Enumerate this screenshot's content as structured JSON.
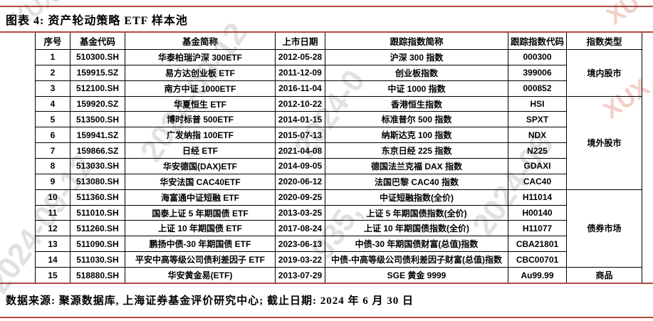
{
  "figure": {
    "title": "图表 4: 资产轮动策略 ETF 样本池",
    "source_note": "数据来源: 聚源数据库, 上海证券基金评价研究中心; 截止日期: 2024 年 6 月 30 日"
  },
  "colors": {
    "rule_red": "#AE4A42",
    "table_border": "#000000",
    "watermark_gray": "#e1e1e1",
    "watermark_pink": "#f3cfc9"
  },
  "table": {
    "headers": {
      "no": "序号",
      "fund_code": "基金代码",
      "fund_name": "基金简称",
      "list_date": "上市日期",
      "index_name": "跟踪指数简称",
      "index_code": "跟踪指数代码",
      "index_type": "指数类型"
    },
    "rows": [
      {
        "no": "1",
        "fund_code": "510300.SH",
        "fund_name": "华泰柏瑞沪深 300ETF",
        "list_date": "2012-05-28",
        "index_name": "沪深 300 指数",
        "index_code": "000300"
      },
      {
        "no": "2",
        "fund_code": "159915.SZ",
        "fund_name": "易方达创业板 ETF",
        "list_date": "2011-12-09",
        "index_name": "创业板指数",
        "index_code": "399006"
      },
      {
        "no": "3",
        "fund_code": "512100.SH",
        "fund_name": "南方中证 1000ETF",
        "list_date": "2016-11-04",
        "index_name": "中证 1000 指数",
        "index_code": "000852"
      },
      {
        "no": "4",
        "fund_code": "159920.SZ",
        "fund_name": "华夏恒生 ETF",
        "list_date": "2012-10-22",
        "index_name": "香港恒生指数",
        "index_code": "HSI"
      },
      {
        "no": "5",
        "fund_code": "513500.SH",
        "fund_name": "博时标普 500ETF",
        "list_date": "2014-01-15",
        "index_name": "标准普尔 500 指数",
        "index_code": "SPXT"
      },
      {
        "no": "6",
        "fund_code": "159941.SZ",
        "fund_name": "广发纳指 100ETF",
        "list_date": "2015-07-13",
        "index_name": "纳斯达克 100 指数",
        "index_code": "NDX"
      },
      {
        "no": "7",
        "fund_code": "159866.SZ",
        "fund_name": "日经 ETF",
        "list_date": "2021-04-08",
        "index_name": "东京日经 225 指数",
        "index_code": "N225"
      },
      {
        "no": "8",
        "fund_code": "513030.SH",
        "fund_name": "华安德国(DAX)ETF",
        "list_date": "2014-09-05",
        "index_name": "德国法兰克福 DAX 指数",
        "index_code": "GDAXI"
      },
      {
        "no": "9",
        "fund_code": "513080.SH",
        "fund_name": "华安法国 CAC40ETF",
        "list_date": "2020-06-12",
        "index_name": "法国巴黎 CAC40 指数",
        "index_code": "CAC40"
      },
      {
        "no": "10",
        "fund_code": "511360.SH",
        "fund_name": "海富通中证短融 ETF",
        "list_date": "2020-09-25",
        "index_name": "中证短融指数(全价)",
        "index_code": "H11014"
      },
      {
        "no": "11",
        "fund_code": "511010.SH",
        "fund_name": "国泰上证 5 年期国债 ETF",
        "list_date": "2013-03-25",
        "index_name": "上证 5 年期国债指数(全价)",
        "index_code": "H00140"
      },
      {
        "no": "12",
        "fund_code": "511260.SH",
        "fund_name": "上证 10 年期国债 ETF",
        "list_date": "2017-08-24",
        "index_name": "上证 10 年期国债指数(全价)",
        "index_code": "H11077"
      },
      {
        "no": "13",
        "fund_code": "511090.SH",
        "fund_name": "鹏扬中债-30 年期国债 ETF",
        "list_date": "2023-06-13",
        "index_name": "中债-30 年期国债财富(总值)指数",
        "index_code": "CBA21801"
      },
      {
        "no": "14",
        "fund_code": "511030.SH",
        "fund_name": "平安中高等级公司债利差因子 ETF",
        "list_date": "2019-03-22",
        "index_name": "中债-中高等级公司债利差因子财富(总值)指数",
        "index_code": "CBC00701"
      },
      {
        "no": "15",
        "fund_code": "518880.SH",
        "fund_name": "华安黄金易(ETF)",
        "list_date": "2013-07-29",
        "index_name": "SGE 黄金 9999",
        "index_code": "Au99.99"
      }
    ],
    "type_groups": [
      {
        "label": "境内股市",
        "row_span": 3
      },
      {
        "label": "境外股市",
        "row_span": 6
      },
      {
        "label": "债券市场",
        "row_span": 5
      },
      {
        "label": "商品",
        "row_span": 1
      }
    ]
  },
  "watermarks": [
    "XUX",
    "2024-09-12",
    "2024-09-12",
    "2024-0",
    "935,",
    "2024-08",
    "XU",
    "XUX"
  ]
}
